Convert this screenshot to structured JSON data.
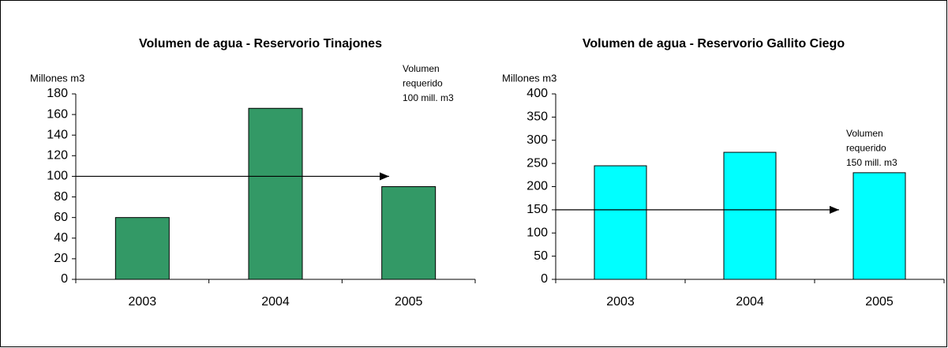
{
  "chart_data": [
    {
      "type": "bar",
      "title": "Volumen  de agua - Reservorio Tinajones",
      "ylabel": "Millones m3",
      "categories": [
        "2003",
        "2004",
        "2005"
      ],
      "values": [
        60,
        166,
        90
      ],
      "color": "#339966",
      "ylim": [
        0,
        180
      ],
      "yticks": [
        0,
        20,
        40,
        60,
        80,
        100,
        120,
        140,
        160,
        180
      ],
      "reference_line": {
        "value": 100,
        "annotation": [
          "Volumen",
          "requerido",
          "100 mill. m3"
        ]
      }
    },
    {
      "type": "bar",
      "title": "Volumen  de agua - Reservorio Gallito Ciego",
      "ylabel": "Millones m3",
      "categories": [
        "2003",
        "2004",
        "2005"
      ],
      "values": [
        245,
        274,
        230
      ],
      "color": "#00ffff",
      "ylim": [
        0,
        400
      ],
      "yticks": [
        0,
        50,
        100,
        150,
        200,
        250,
        300,
        350,
        400
      ],
      "reference_line": {
        "value": 150,
        "annotation": [
          "Volumen",
          "requerido",
          "150 mill. m3"
        ]
      }
    }
  ]
}
